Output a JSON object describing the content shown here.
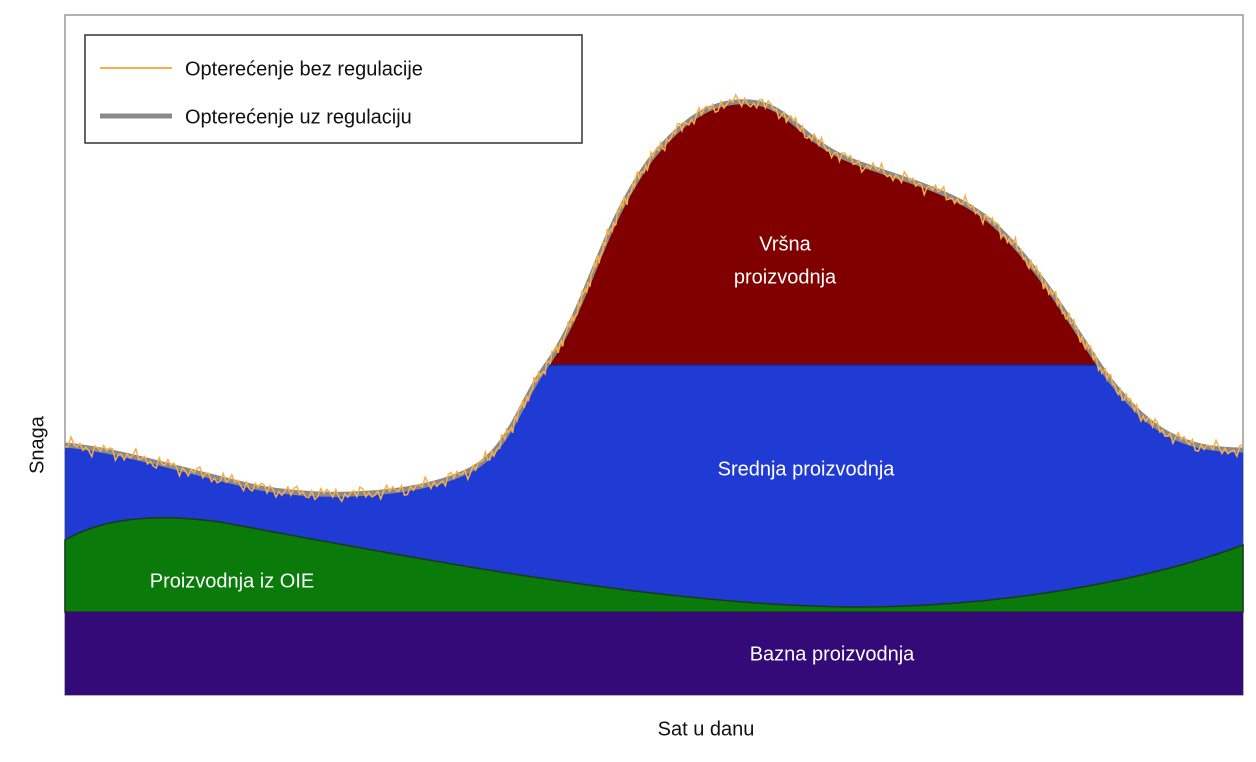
{
  "axes": {
    "x_label": "Sat u danu",
    "y_label": "Snaga"
  },
  "legend": {
    "items": [
      "Opterećenje bez regulacije",
      "Opterećenje uz regulaciju"
    ]
  },
  "areas": {
    "peak": [
      "Vršna",
      "proizvodnja"
    ],
    "medium": "Srednja proizvodnja",
    "renewable": "Proizvodnja iz OIE",
    "base": "Bazna proizvodnja"
  }
}
